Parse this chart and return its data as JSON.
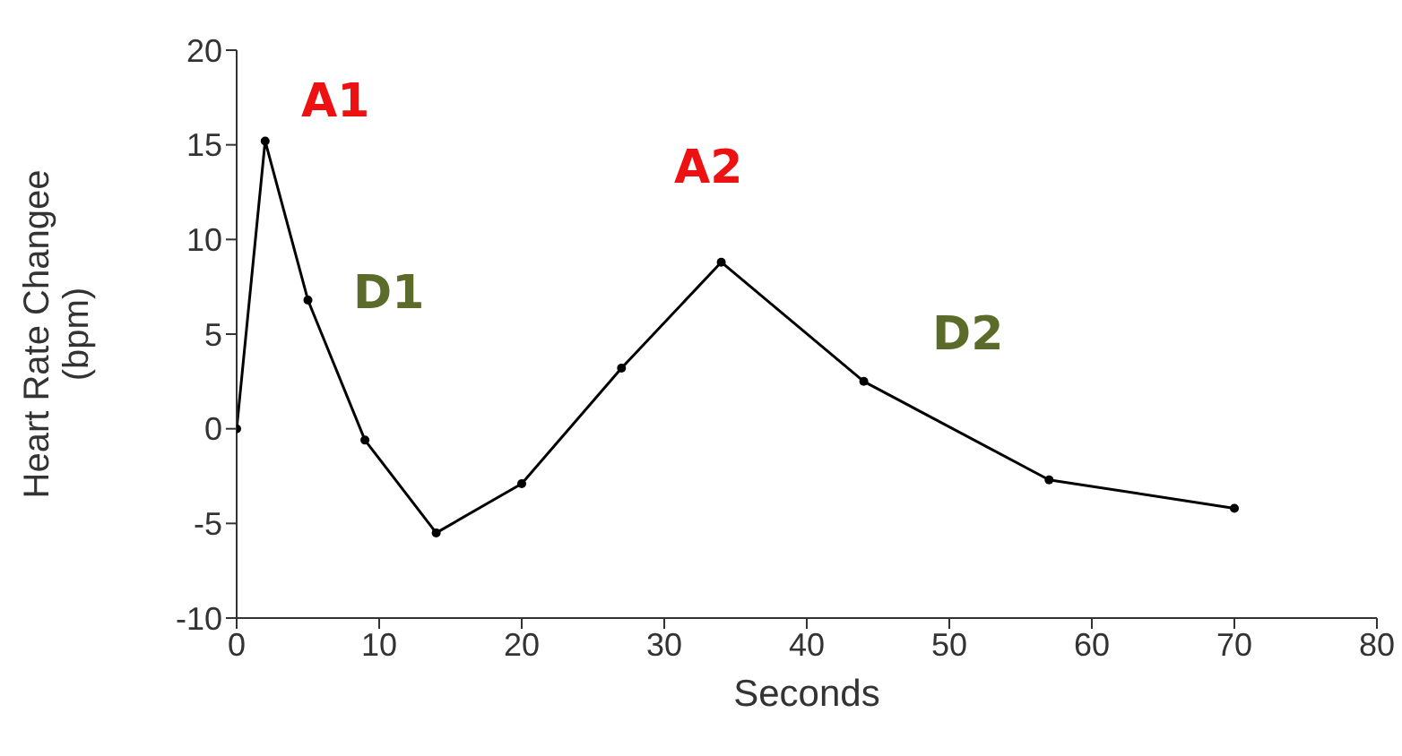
{
  "chart_data": {
    "type": "line",
    "xlabel": "Seconds",
    "ylabel": "Heart Rate Changee (bpm)",
    "xlim": [
      0,
      80
    ],
    "xticks": [
      0,
      10,
      20,
      30,
      40,
      50,
      60,
      70,
      80
    ],
    "ylim": [
      -10,
      20
    ],
    "yticks": [
      -10,
      -5,
      0,
      5,
      10,
      15,
      20
    ],
    "grid": false,
    "legend": false,
    "marker": "circle",
    "line_style": "solid",
    "series": [
      {
        "color": "#000000",
        "x": [
          0,
          2,
          5,
          9,
          14,
          20,
          27,
          34,
          44,
          57,
          70
        ],
        "values": [
          0,
          15.2,
          6.8,
          -0.6,
          -5.5,
          -2.9,
          3.2,
          8.8,
          2.5,
          -2.7,
          -4.2
        ]
      }
    ],
    "annotations": [
      "A1",
      "D1",
      "A2",
      "D2"
    ]
  }
}
